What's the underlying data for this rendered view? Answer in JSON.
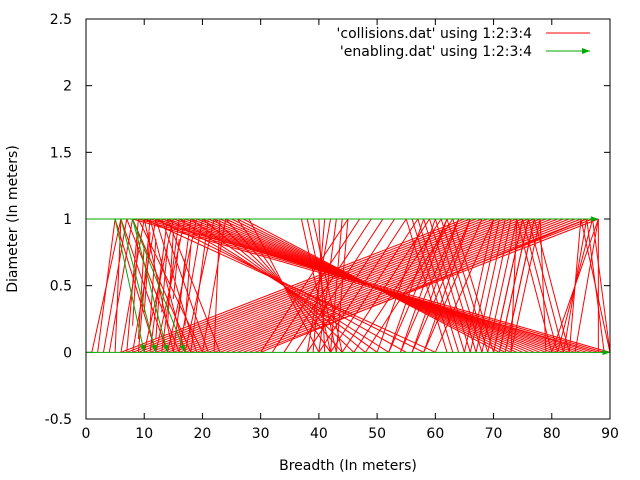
{
  "chart_data": {
    "type": "line",
    "title": "",
    "xlabel": "Breadth (In meters)",
    "ylabel": "Diameter (In meters)",
    "xlim": [
      0,
      90
    ],
    "ylim": [
      -0.5,
      2.5
    ],
    "xticks": [
      0,
      10,
      20,
      30,
      40,
      50,
      60,
      70,
      80,
      90
    ],
    "yticks": [
      -0.5,
      0,
      0.5,
      1,
      1.5,
      2,
      2.5
    ],
    "xtick_labels": [
      "0",
      "10",
      "20",
      "30",
      "40",
      "50",
      "60",
      "70",
      "80",
      "90"
    ],
    "ytick_labels": [
      "-0.5",
      "0",
      "0.5",
      "1",
      "1.5",
      "2",
      "2.5"
    ],
    "grid": false,
    "legend_position": "top-right",
    "series": [
      {
        "name": "'collisions.dat' using 1:2:3:4",
        "style": "vectors-nohead",
        "color": "#ff0000",
        "segments": [
          [
            1,
            0,
            6,
            1
          ],
          [
            2,
            0,
            5,
            1
          ],
          [
            3,
            0,
            7,
            1
          ],
          [
            4,
            0,
            8,
            1
          ],
          [
            5,
            0,
            6,
            1
          ],
          [
            6,
            0,
            10,
            1
          ],
          [
            7,
            0,
            9,
            1
          ],
          [
            8,
            0,
            12,
            1
          ],
          [
            9,
            0,
            11,
            1
          ],
          [
            10,
            0,
            15,
            1
          ],
          [
            11,
            0,
            14,
            1
          ],
          [
            12,
            0,
            17,
            1
          ],
          [
            13,
            0,
            16,
            1
          ],
          [
            14,
            0,
            19,
            1
          ],
          [
            15,
            0,
            18,
            1
          ],
          [
            16,
            0,
            20,
            1
          ],
          [
            17,
            0,
            22,
            1
          ],
          [
            18,
            0,
            21,
            1
          ],
          [
            20,
            0,
            24,
            1
          ],
          [
            22,
            0,
            23,
            1
          ],
          [
            5,
            1,
            12,
            0
          ],
          [
            6,
            1,
            14,
            0
          ],
          [
            7,
            1,
            16,
            0
          ],
          [
            8,
            1,
            18,
            0
          ],
          [
            9,
            1,
            20,
            0
          ],
          [
            10,
            1,
            15,
            0
          ],
          [
            11,
            1,
            17,
            0
          ],
          [
            12,
            1,
            19,
            0
          ],
          [
            13,
            1,
            21,
            0
          ],
          [
            14,
            1,
            23,
            0
          ],
          [
            8,
            0.2,
            9,
            0.9
          ],
          [
            9,
            0.1,
            10,
            0.8
          ],
          [
            10,
            0.3,
            11,
            0.9
          ],
          [
            11,
            0.2,
            12,
            0.85
          ],
          [
            12,
            0.1,
            13,
            0.7
          ],
          [
            13,
            0.3,
            14,
            0.8
          ],
          [
            14,
            0.2,
            15,
            0.9
          ],
          [
            15,
            0.4,
            16,
            0.85
          ],
          [
            16,
            0.3,
            17,
            0.7
          ],
          [
            17,
            0.2,
            18,
            0.8
          ],
          [
            6,
            0,
            65,
            1
          ],
          [
            7,
            0,
            66,
            1
          ],
          [
            8,
            0,
            67,
            1
          ],
          [
            9,
            0,
            68,
            1
          ],
          [
            10,
            0,
            69,
            1
          ],
          [
            11,
            0,
            70,
            1
          ],
          [
            12,
            0,
            71,
            1
          ],
          [
            13,
            0,
            72,
            1
          ],
          [
            14,
            0,
            73,
            1
          ],
          [
            15,
            0,
            74,
            1
          ],
          [
            16,
            0,
            75,
            1
          ],
          [
            17,
            0,
            76,
            1
          ],
          [
            18,
            0,
            77,
            1
          ],
          [
            19,
            0,
            78,
            1
          ],
          [
            20,
            0,
            79,
            1
          ],
          [
            21,
            0,
            80,
            1
          ],
          [
            22,
            0,
            81,
            1
          ],
          [
            23,
            0,
            82,
            1
          ],
          [
            24,
            0,
            83,
            1
          ],
          [
            25,
            0,
            84,
            1
          ],
          [
            26,
            0,
            85,
            1
          ],
          [
            27,
            0,
            86,
            1
          ],
          [
            28,
            0,
            87,
            1
          ],
          [
            29,
            0,
            88,
            1
          ],
          [
            30,
            0,
            86,
            1
          ],
          [
            8,
            1,
            88,
            0
          ],
          [
            9,
            1,
            89,
            0
          ],
          [
            10,
            1,
            90,
            0
          ],
          [
            11,
            1,
            87,
            0
          ],
          [
            12,
            1,
            86,
            0
          ],
          [
            13,
            1,
            85,
            0
          ],
          [
            14,
            1,
            84,
            0
          ],
          [
            15,
            1,
            83,
            0
          ],
          [
            16,
            1,
            82,
            0
          ],
          [
            17,
            1,
            81,
            0
          ],
          [
            18,
            1,
            80,
            0
          ],
          [
            19,
            1,
            79,
            0
          ],
          [
            20,
            1,
            78,
            0
          ],
          [
            21,
            1,
            77,
            0
          ],
          [
            22,
            1,
            76,
            0
          ],
          [
            23,
            1,
            75,
            0
          ],
          [
            24,
            1,
            74,
            0
          ],
          [
            25,
            1,
            73,
            0
          ],
          [
            26,
            1,
            72,
            0
          ],
          [
            27,
            1,
            71,
            0
          ],
          [
            10,
            1,
            60,
            0
          ],
          [
            12,
            1,
            58,
            0
          ],
          [
            14,
            1,
            55,
            0
          ],
          [
            16,
            1,
            52,
            0
          ],
          [
            18,
            1,
            50,
            0
          ],
          [
            20,
            1,
            48,
            0
          ],
          [
            22,
            1,
            46,
            0
          ],
          [
            24,
            1,
            44,
            0
          ],
          [
            26,
            1,
            42,
            0
          ],
          [
            28,
            1,
            40,
            0
          ],
          [
            30,
            0,
            45,
            1
          ],
          [
            32,
            0,
            47,
            1
          ],
          [
            34,
            0,
            49,
            1
          ],
          [
            36,
            0,
            51,
            1
          ],
          [
            38,
            0,
            53,
            1
          ],
          [
            40,
            0,
            55,
            1
          ],
          [
            42,
            0,
            57,
            1
          ],
          [
            44,
            0,
            59,
            1
          ],
          [
            46,
            0,
            61,
            1
          ],
          [
            48,
            0,
            63,
            1
          ],
          [
            37,
            1,
            42,
            0
          ],
          [
            38,
            1,
            43,
            0
          ],
          [
            39,
            1,
            44,
            0
          ],
          [
            40,
            1,
            41,
            0
          ],
          [
            41,
            1,
            39,
            0
          ],
          [
            42,
            1,
            38,
            0
          ],
          [
            43,
            1,
            40,
            0
          ],
          [
            44,
            1,
            42,
            0
          ],
          [
            45,
            1,
            43,
            0
          ],
          [
            55,
            1,
            62,
            0
          ],
          [
            56,
            1,
            63,
            0
          ],
          [
            57,
            1,
            64,
            0
          ],
          [
            58,
            1,
            65,
            0
          ],
          [
            59,
            1,
            66,
            0
          ],
          [
            60,
            1,
            67,
            0
          ],
          [
            61,
            1,
            68,
            0
          ],
          [
            62,
            1,
            69,
            0
          ],
          [
            63,
            1,
            70,
            0
          ],
          [
            65,
            0,
            70,
            1
          ],
          [
            66,
            0,
            71,
            1
          ],
          [
            67,
            0,
            72,
            1
          ],
          [
            68,
            0,
            73,
            1
          ],
          [
            69,
            0,
            74,
            1
          ],
          [
            70,
            0,
            75,
            1
          ],
          [
            71,
            0,
            76,
            1
          ],
          [
            72,
            0,
            77,
            1
          ],
          [
            73,
            0,
            78,
            1
          ],
          [
            74,
            1,
            80,
            0
          ],
          [
            75,
            1,
            81,
            0
          ],
          [
            76,
            1,
            82,
            0
          ],
          [
            77,
            1,
            83,
            0
          ],
          [
            78,
            1,
            79,
            0
          ],
          [
            75,
            1,
            70,
            0
          ],
          [
            76,
            1,
            71,
            0
          ],
          [
            77,
            1,
            72,
            0
          ],
          [
            74,
            1,
            73,
            0
          ],
          [
            80,
            0,
            88,
            1
          ],
          [
            81,
            0,
            87,
            1
          ],
          [
            82,
            0,
            86,
            1
          ],
          [
            83,
            0,
            85,
            1
          ],
          [
            84,
            0,
            88,
            1
          ],
          [
            85,
            1,
            90,
            0
          ],
          [
            86,
            1,
            89,
            0
          ],
          [
            87,
            1,
            90,
            0
          ],
          [
            88,
            1,
            88,
            0
          ],
          [
            50,
            0,
            58,
            1
          ],
          [
            52,
            0,
            60,
            1
          ],
          [
            54,
            0,
            62,
            1
          ],
          [
            56,
            0,
            64,
            1
          ],
          [
            58,
            0,
            66,
            1
          ],
          [
            62,
            1,
            52,
            0
          ],
          [
            64,
            1,
            54,
            0
          ],
          [
            66,
            1,
            56,
            0
          ],
          [
            68,
            1,
            58,
            0
          ],
          [
            70,
            1,
            60,
            0
          ]
        ]
      },
      {
        "name": "'enabling.dat' using 1:2:3:4",
        "style": "vectors",
        "color": "#00aa00",
        "segments": [
          [
            0,
            1,
            88,
            1
          ],
          [
            0,
            0,
            90,
            0
          ],
          [
            5,
            1,
            10,
            0
          ],
          [
            6,
            1,
            12,
            0
          ],
          [
            8,
            1,
            14,
            0
          ],
          [
            8,
            1,
            17,
            0
          ]
        ]
      }
    ]
  }
}
